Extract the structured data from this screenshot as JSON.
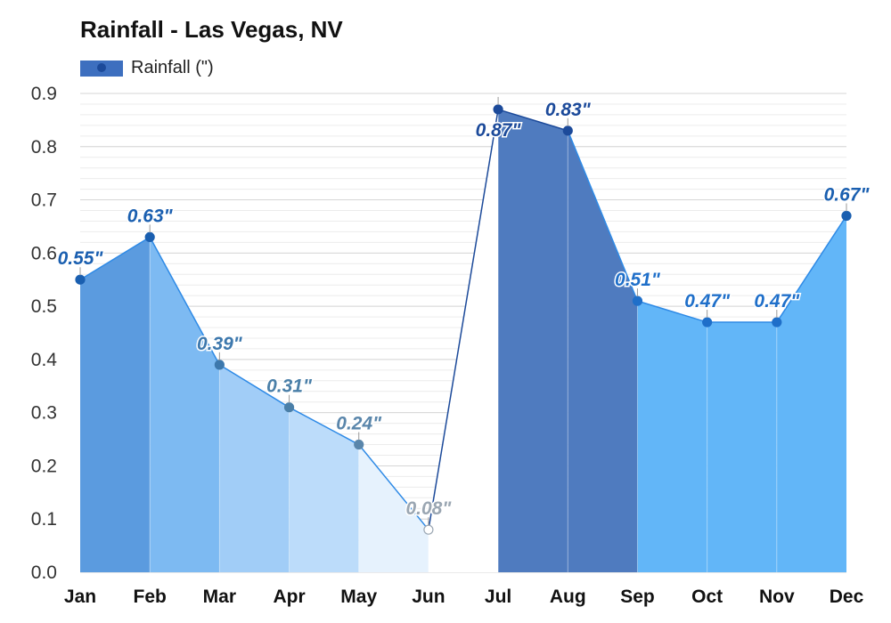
{
  "chart_data": {
    "type": "area",
    "title": "Rainfall - Las Vegas, NV",
    "xlabel": "",
    "ylabel": "",
    "categories": [
      "Jan",
      "Feb",
      "Mar",
      "Apr",
      "May",
      "Jun",
      "Jul",
      "Aug",
      "Sep",
      "Oct",
      "Nov",
      "Dec"
    ],
    "series": [
      {
        "name": "Rainfall (\")",
        "values": [
          0.55,
          0.63,
          0.39,
          0.31,
          0.24,
          0.08,
          0.87,
          0.83,
          0.51,
          0.47,
          0.47,
          0.67
        ],
        "data_labels": [
          "0.55\"",
          "0.63\"",
          "0.39\"",
          "0.31\"",
          "0.24\"",
          "0.08\"",
          "0.87\"",
          "0.83\"",
          "0.51\"",
          "0.47\"",
          "0.47\"",
          "0.67\""
        ]
      }
    ],
    "ylim": [
      0,
      0.9
    ],
    "yticks": [
      "0.0",
      "0.1",
      "0.2",
      "0.3",
      "0.4",
      "0.5",
      "0.6",
      "0.7",
      "0.8",
      "0.9"
    ],
    "grid": true,
    "legend_position": "top-left",
    "colors": {
      "legend_swatch": "#3d6fbf",
      "line": "#2e8ae6",
      "segment_fills": [
        "#5b9bdf",
        "#7dbaf2",
        "#a1cdf7",
        "#bcdcfa",
        "#e6f2fd",
        "#ffffff",
        "#4f7bbf",
        "#4f7bbf",
        "#62b6f8",
        "#62b6f8",
        "#62b6f8",
        "#5b9bdf"
      ],
      "label_colors": [
        "#1a5fb0",
        "#1a5fb0",
        "#3d78ad",
        "#4a7fa8",
        "#5a86ab",
        "#9aa6b2",
        "#1c4a9a",
        "#1c4a9a",
        "#1f6fc9",
        "#1f6fc9",
        "#1f6fc9",
        "#1a5fb0"
      ]
    }
  }
}
